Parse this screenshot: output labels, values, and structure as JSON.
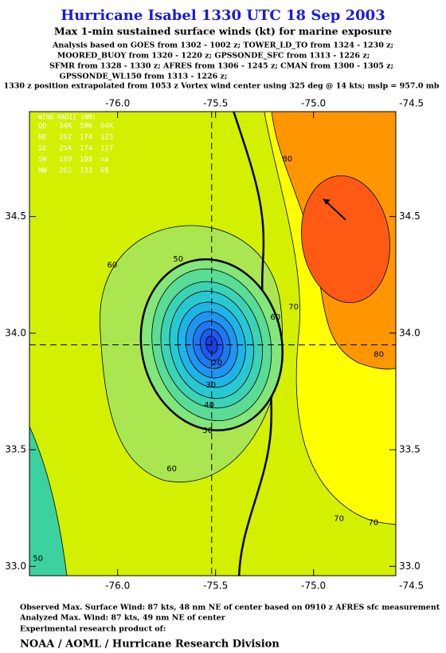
{
  "chart_data": {
    "type": "contour",
    "title": "Hurricane Isabel 1330 UTC 18 Sep 2003",
    "subtitle": "Max 1-min sustained surface winds (kt) for marine exposure",
    "analysis_lines": [
      "Analysis based on  GOES from 1302 - 1002 z;  TOWER_LD_TO from 1324 - 1230 z;",
      "MOORED_BUOY from 1320 - 1220 z;  GPSSONDE_SFC from 1313 - 1226 z;",
      "SFMR from 1328 - 1330 z;  AFRES from 1306 - 1245 z;  CMAN from 1300 - 1305 z;",
      "GPSSONDE_WL150 from 1313 - 1226 z;"
    ],
    "position_note": "1330 z position extrapolated from 1053 z Vortex wind center using 325 deg @ 14 kts; mslp = 957.0 mb",
    "xlim": [
      -76.45,
      -74.58
    ],
    "ylim": [
      32.96,
      34.95
    ],
    "xticks": [
      {
        "value": -76.0,
        "label": "-76.0"
      },
      -75.5,
      {
        "value": -75.0,
        "label": "-75.0"
      },
      -74.5
    ],
    "yticks": [
      {
        "value": 33.0,
        "label": "33.0"
      },
      33.5,
      {
        "value": 34.0,
        "label": "34.0"
      },
      34.5
    ],
    "center": {
      "lon": -75.52,
      "lat": 33.95
    },
    "max_wind_location": {
      "lon": -74.95,
      "lat": 34.575
    },
    "levels": [
      {
        "value": 10,
        "color": "#1e3cdc"
      },
      {
        "value": 15,
        "color": "#1e5af0"
      },
      {
        "value": 20,
        "color": "#1e78f0"
      },
      {
        "value": 25,
        "color": "#1e96f0"
      },
      {
        "value": 30,
        "color": "#1eb4e6"
      },
      {
        "value": 35,
        "color": "#28c8d2"
      },
      {
        "value": 40,
        "color": "#3cd2b4"
      },
      {
        "value": 45,
        "color": "#5adc96"
      },
      {
        "value": 50,
        "color": "#82e67a"
      },
      {
        "value": 60,
        "color": "#aae650"
      },
      {
        "value": 70,
        "color": "#d2f000"
      },
      {
        "value": 80,
        "color": "#ffff00"
      },
      {
        "value": 85,
        "color": "#ff9600"
      },
      {
        "value": 90,
        "color": "#ff5a14"
      }
    ],
    "contour_labels": [
      {
        "value": 80,
        "lon": -75.134,
        "lat": 34.747
      },
      {
        "value": 80,
        "lon": -74.667,
        "lat": 33.908
      },
      {
        "value": 70,
        "lon": -75.102,
        "lat": 34.113
      },
      {
        "value": 70,
        "lon": -74.87,
        "lat": 33.205
      },
      {
        "value": 70,
        "lon": -74.695,
        "lat": 33.188
      },
      {
        "value": 60,
        "lon": -76.028,
        "lat": 34.291
      },
      {
        "value": 60,
        "lon": -75.195,
        "lat": 34.068
      },
      {
        "value": 60,
        "lon": -75.724,
        "lat": 33.418
      },
      {
        "value": 50,
        "lon": -75.691,
        "lat": 34.318
      },
      {
        "value": 50,
        "lon": -75.541,
        "lat": 33.582
      },
      {
        "value": 50,
        "lon": -76.407,
        "lat": 33.034
      },
      {
        "value": 40,
        "lon": -75.533,
        "lat": 33.692
      },
      {
        "value": 30,
        "lon": -75.524,
        "lat": 33.777
      },
      {
        "value": 20,
        "lon": -75.492,
        "lat": 33.873
      }
    ],
    "wind_radii": {
      "title": "WIND RADII (NM)",
      "columns": [
        "QD",
        "34K",
        "50K",
        "64K"
      ],
      "rows": [
        [
          "NE",
          262,
          174,
          123
        ],
        [
          "SE",
          254,
          174,
          117
        ],
        [
          "SW",
          189,
          108,
          "na"
        ],
        [
          "NW",
          262,
          133,
          65
        ]
      ]
    },
    "footer_lines": [
      "Observed Max. Surface Wind: 87 kts, 48 nm NE of center based on 0910 z AFRES sfc measurement",
      "Analyzed Max. Wind: 87 kts, 49 nm NE of center",
      "Experimental research product of:"
    ],
    "organization": "NOAA / AOML / Hurricane Research Division"
  }
}
